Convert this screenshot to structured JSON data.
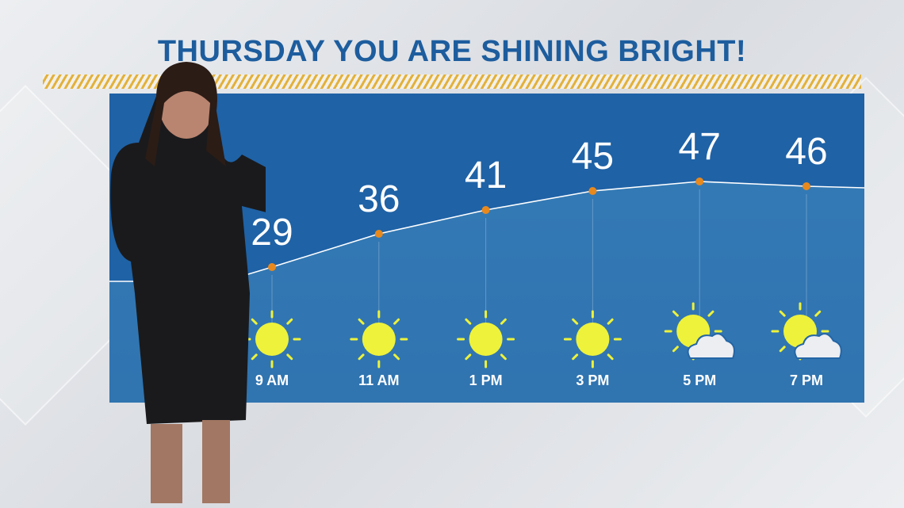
{
  "title": "THURSDAY YOU ARE SHINING BRIGHT!",
  "chart_data": {
    "type": "line",
    "categories": [
      "9 AM",
      "11 AM",
      "1 PM",
      "3 PM",
      "5 PM",
      "7 PM"
    ],
    "values": [
      29,
      36,
      41,
      45,
      47,
      46
    ],
    "value_labels": [
      "29",
      "36",
      "41",
      "45",
      "47",
      "46"
    ],
    "icons": [
      "sun-icon",
      "sun-icon",
      "sun-icon",
      "sun-icon",
      "partly-cloudy-icon",
      "partly-cloudy-icon"
    ],
    "title": "",
    "xlabel": "",
    "ylabel": "",
    "grid": false
  },
  "colors": {
    "title": "#1d5d9e",
    "panel": "#2a70b0",
    "dot": "#e8891d",
    "sun": "#eef23a",
    "label": "#ffffff"
  }
}
